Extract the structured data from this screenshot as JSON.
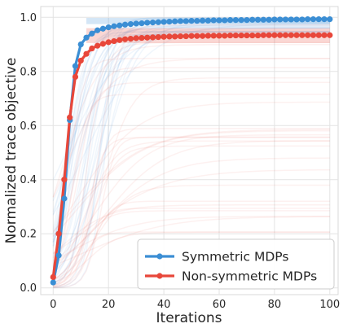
{
  "chart_data": {
    "type": "line",
    "title": "",
    "xlabel": "Iterations",
    "ylabel": "Normalized trace objective",
    "xlim": [
      -4.5,
      103
    ],
    "ylim": [
      -0.025,
      1.04
    ],
    "xticks": [
      0,
      20,
      40,
      60,
      80,
      100
    ],
    "yticks": [
      0.0,
      0.2,
      0.4,
      0.6,
      0.8,
      1.0
    ],
    "xtick_labels": [
      "0",
      "20",
      "40",
      "60",
      "80",
      "100"
    ],
    "ytick_labels": [
      "0.0",
      "0.2",
      "0.4",
      "0.6",
      "0.8",
      "1.0"
    ],
    "grid": true,
    "legend_position": "lower-right",
    "series": [
      {
        "name": "Symmetric MDPs",
        "color": "#3b8ed4",
        "band": [
          0.975,
          0.998
        ],
        "x": [
          0,
          2,
          4,
          6,
          8,
          10,
          12,
          14,
          16,
          18,
          20,
          22,
          24,
          26,
          28,
          30,
          32,
          34,
          36,
          38,
          40,
          42,
          44,
          46,
          48,
          50,
          52,
          54,
          56,
          58,
          60,
          62,
          64,
          66,
          68,
          70,
          72,
          74,
          76,
          78,
          80,
          82,
          84,
          86,
          88,
          90,
          92,
          94,
          96,
          98,
          100
        ],
        "y": [
          0.02,
          0.12,
          0.33,
          0.62,
          0.82,
          0.9,
          0.925,
          0.94,
          0.952,
          0.958,
          0.963,
          0.967,
          0.97,
          0.973,
          0.975,
          0.977,
          0.978,
          0.98,
          0.981,
          0.982,
          0.983,
          0.984,
          0.985,
          0.986,
          0.986,
          0.987,
          0.987,
          0.988,
          0.988,
          0.989,
          0.989,
          0.989,
          0.99,
          0.99,
          0.99,
          0.99,
          0.991,
          0.991,
          0.991,
          0.991,
          0.992,
          0.992,
          0.992,
          0.992,
          0.992,
          0.992,
          0.993,
          0.993,
          0.993,
          0.993,
          0.993
        ]
      },
      {
        "name": "Non-symmetric MDPs",
        "color": "#e8473a",
        "band": [
          0.905,
          0.96
        ],
        "x": [
          0,
          2,
          4,
          6,
          8,
          10,
          12,
          14,
          16,
          18,
          20,
          22,
          24,
          26,
          28,
          30,
          32,
          34,
          36,
          38,
          40,
          42,
          44,
          46,
          48,
          50,
          52,
          54,
          56,
          58,
          60,
          62,
          64,
          66,
          68,
          70,
          72,
          74,
          76,
          78,
          80,
          82,
          84,
          86,
          88,
          90,
          92,
          94,
          96,
          98,
          100
        ],
        "y": [
          0.04,
          0.2,
          0.4,
          0.63,
          0.78,
          0.84,
          0.865,
          0.885,
          0.895,
          0.902,
          0.908,
          0.912,
          0.916,
          0.919,
          0.921,
          0.923,
          0.924,
          0.925,
          0.926,
          0.927,
          0.928,
          0.929,
          0.929,
          0.93,
          0.93,
          0.931,
          0.931,
          0.931,
          0.932,
          0.932,
          0.932,
          0.932,
          0.933,
          0.933,
          0.933,
          0.933,
          0.933,
          0.933,
          0.934,
          0.934,
          0.934,
          0.934,
          0.934,
          0.934,
          0.934,
          0.934,
          0.934,
          0.934,
          0.934,
          0.934,
          0.934
        ]
      }
    ]
  }
}
